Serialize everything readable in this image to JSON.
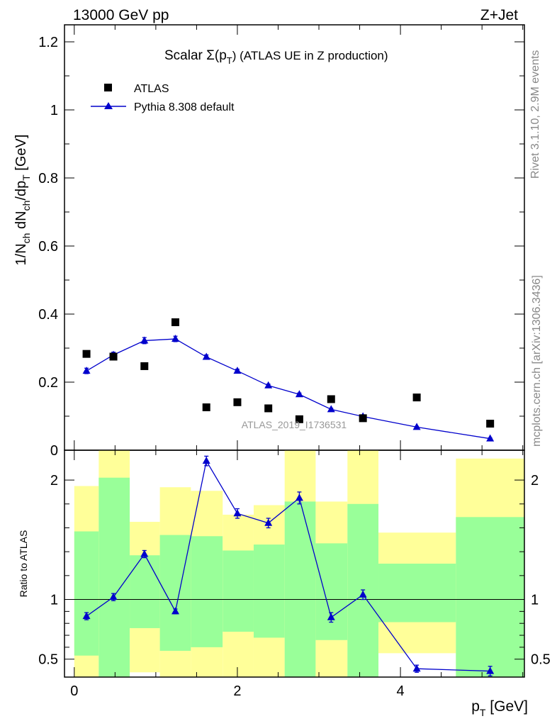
{
  "header": {
    "left": "13000 GeV pp",
    "right": "Z+Jet"
  },
  "side_labels": {
    "rivet": "Rivet 3.1.10,  2.9M events",
    "mcplots": "mcplots.cern.ch [arXiv:1306.3436]"
  },
  "chart_data": [
    {
      "type": "scatter",
      "title": {
        "main": "Scalar Σ(p",
        "sub": "T",
        "tail": ") (ATLAS UE in Z production)"
      },
      "ylabel": {
        "p1": "1/N",
        "s1": "ch",
        "p2": " dN",
        "s2": "ch",
        "p3": "/dp",
        "s3": "T",
        "p4": " [GeV]"
      },
      "watermark": "ATLAS_2019_I1736531",
      "xlim": [
        -0.12,
        5.52
      ],
      "ylim": [
        0,
        1.25
      ],
      "yticks": [
        {
          "v": 0,
          "label": "0"
        },
        {
          "v": 0.2,
          "label": "0.2"
        },
        {
          "v": 0.4,
          "label": "0.4"
        },
        {
          "v": 0.6,
          "label": "0.6"
        },
        {
          "v": 0.8,
          "label": "0.8"
        },
        {
          "v": 1,
          "label": "1"
        },
        {
          "v": 1.2,
          "label": "1.2"
        }
      ],
      "series": [
        {
          "name": "ATLAS",
          "color": "#000000",
          "marker": "square",
          "x": [
            0.15,
            0.48,
            0.86,
            1.24,
            1.62,
            2.0,
            2.38,
            2.76,
            3.15,
            3.54,
            4.2,
            5.1
          ],
          "y": [
            0.283,
            0.275,
            0.247,
            0.376,
            0.126,
            0.141,
            0.123,
            0.091,
            0.15,
            0.094,
            0.155,
            0.078
          ]
        },
        {
          "name": "Pythia 8.308 default",
          "color": "#0000cc",
          "marker": "triangle",
          "x": [
            0.15,
            0.48,
            0.86,
            1.24,
            1.62,
            2.0,
            2.38,
            2.76,
            3.15,
            3.54,
            4.2,
            5.1
          ],
          "y": [
            0.233,
            0.28,
            0.322,
            0.327,
            0.274,
            0.233,
            0.19,
            0.164,
            0.12,
            0.099,
            0.068,
            0.034
          ],
          "err": [
            0.008,
            0.008,
            0.009,
            0.008,
            0.006,
            0.005,
            0.004,
            0.004,
            0.003,
            0.003,
            0.002,
            0.002
          ]
        }
      ]
    },
    {
      "type": "line",
      "ylabel": "Ratio to ATLAS",
      "xlabel": {
        "main": "p",
        "sub": "T",
        "tail": " [GeV]"
      },
      "xlim": [
        -0.12,
        5.52
      ],
      "ylim": [
        0.35,
        2.25
      ],
      "xticks": [
        {
          "v": 0,
          "label": "0"
        },
        {
          "v": 2,
          "label": "2"
        },
        {
          "v": 4,
          "label": "4"
        }
      ],
      "yticks": [
        {
          "v": 0.5,
          "label": "0.5"
        },
        {
          "v": 1,
          "label": "1"
        },
        {
          "v": 2,
          "label": "2"
        }
      ],
      "reference_line": 1,
      "bands": [
        {
          "lo": 0.0,
          "hi": 0.3,
          "yellow": [
            0.35,
            1.95
          ],
          "green": [
            0.53,
            1.57
          ]
        },
        {
          "lo": 0.3,
          "hi": 0.68,
          "yellow": [
            0.35,
            2.25
          ],
          "green": [
            0.35,
            2.02
          ]
        },
        {
          "lo": 0.68,
          "hi": 1.05,
          "yellow": [
            0.39,
            1.65
          ],
          "green": [
            0.76,
            1.37
          ]
        },
        {
          "lo": 1.05,
          "hi": 1.43,
          "yellow": [
            0.35,
            1.94
          ],
          "green": [
            0.57,
            1.54
          ]
        },
        {
          "lo": 1.43,
          "hi": 1.82,
          "yellow": [
            0.35,
            1.91
          ],
          "green": [
            0.6,
            1.53
          ]
        },
        {
          "lo": 1.82,
          "hi": 2.2,
          "yellow": [
            0.35,
            1.71
          ],
          "green": [
            0.73,
            1.41
          ]
        },
        {
          "lo": 2.2,
          "hi": 2.58,
          "yellow": [
            0.35,
            1.79
          ],
          "green": [
            0.68,
            1.46
          ]
        },
        {
          "lo": 2.58,
          "hi": 2.96,
          "yellow": [
            0.35,
            2.25
          ],
          "green": [
            0.35,
            1.82
          ]
        },
        {
          "lo": 2.96,
          "hi": 3.35,
          "yellow": [
            0.35,
            1.82
          ],
          "green": [
            0.66,
            1.47
          ]
        },
        {
          "lo": 3.35,
          "hi": 3.73,
          "yellow": [
            0.35,
            2.25
          ],
          "green": [
            0.35,
            1.8
          ]
        },
        {
          "lo": 3.73,
          "hi": 4.68,
          "yellow": [
            0.55,
            1.56
          ],
          "green": [
            0.81,
            1.3
          ]
        },
        {
          "lo": 4.68,
          "hi": 5.52,
          "yellow": [
            0.35,
            2.18
          ],
          "green": [
            0.35,
            1.69
          ]
        }
      ],
      "series": [
        {
          "name": "Pythia 8.308 default",
          "color": "#0000cc",
          "x": [
            0.15,
            0.48,
            0.86,
            1.24,
            1.62,
            2.0,
            2.38,
            2.76,
            3.15,
            3.54,
            4.2,
            5.1
          ],
          "y": [
            0.86,
            1.02,
            1.38,
            0.9,
            2.16,
            1.72,
            1.64,
            1.85,
            0.85,
            1.04,
            0.42,
            0.4
          ],
          "err": [
            0.03,
            0.03,
            0.03,
            0.02,
            0.04,
            0.04,
            0.04,
            0.05,
            0.04,
            0.04,
            0.03,
            0.04
          ]
        }
      ]
    }
  ],
  "colors": {
    "yellow_band": "#ffff99",
    "green_band": "#99ff99",
    "mc_line": "#0000cc",
    "data": "#000000",
    "side_text": "#888888",
    "watermark": "#999999"
  }
}
